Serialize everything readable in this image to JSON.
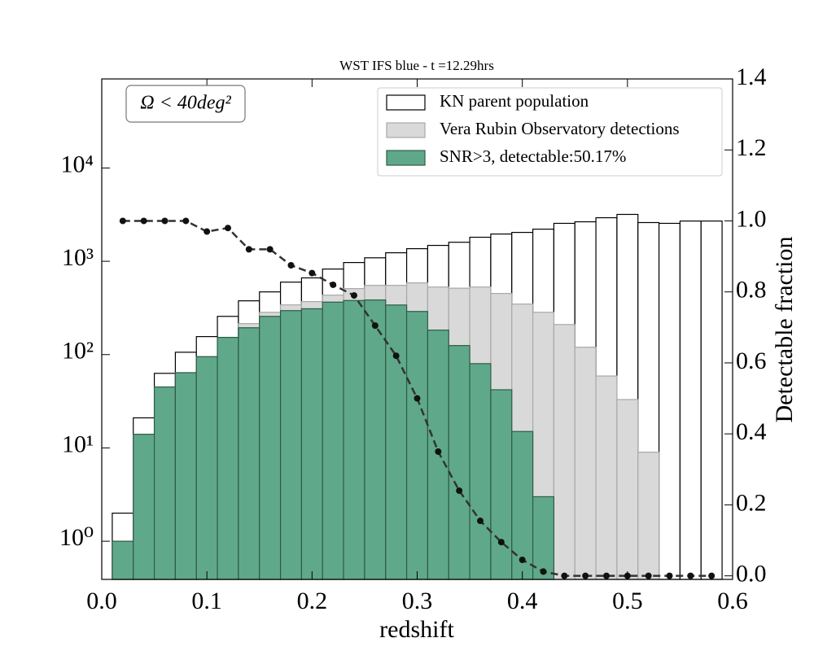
{
  "chart_data": {
    "type": "histogram",
    "title": "WST IFS blue - t =12.29hrs",
    "xlabel": "redshift",
    "y2label": "Detectable fraction",
    "annotation": "Ω < 40deg²",
    "log_y": true,
    "legend": "upper right",
    "bins": [
      0.01,
      0.03,
      0.05,
      0.07,
      0.09,
      0.11,
      0.13,
      0.15,
      0.17,
      0.19,
      0.21,
      0.23,
      0.25,
      0.27,
      0.29,
      0.31,
      0.33,
      0.35,
      0.37,
      0.39,
      0.41,
      0.43,
      0.45,
      0.47,
      0.49,
      0.51,
      0.53,
      0.55,
      0.57,
      0.59
    ],
    "series": [
      {
        "name": "KN parent population",
        "color": "#ffffff",
        "edge": "#000000",
        "values": [
          2,
          21,
          63,
          106,
          156,
          257,
          377,
          470,
          598,
          664,
          826,
          970,
          1090,
          1234,
          1365,
          1480,
          1600,
          1810,
          1960,
          2040,
          2210,
          2550,
          2650,
          2930,
          3180,
          2600,
          2550,
          2700,
          2700
        ]
      },
      {
        "name": "Vera Rubin Observatory detections",
        "color": "#d9d9d9",
        "edge": "#a8a8a8",
        "values": [
          1,
          14,
          45,
          64,
          95,
          153,
          215,
          284,
          341,
          370,
          434,
          510,
          552,
          552,
          587,
          530,
          515,
          530,
          452,
          348,
          284,
          210,
          120,
          59,
          33,
          9,
          null,
          null,
          null
        ]
      },
      {
        "name": "SNR>3, detectable:50.17%",
        "color": "#5fa98a",
        "edge": "#2f5a48",
        "values": [
          1,
          14,
          45,
          64,
          95,
          153,
          194,
          257,
          296,
          310,
          365,
          380,
          385,
          340,
          290,
          183,
          125,
          80,
          42,
          15,
          3,
          null,
          null,
          null,
          null,
          null,
          null,
          null,
          null
        ]
      },
      {
        "type": "line",
        "axis": "y2",
        "color": "#333333",
        "x": [
          0.02,
          0.04,
          0.06,
          0.08,
          0.1,
          0.12,
          0.14,
          0.16,
          0.18,
          0.2,
          0.22,
          0.24,
          0.26,
          0.28,
          0.3,
          0.32,
          0.34,
          0.36,
          0.38,
          0.4,
          0.42,
          0.44,
          0.46,
          0.48,
          0.5,
          0.52,
          0.54,
          0.56,
          0.58
        ],
        "values": [
          1.0,
          1.0,
          1.0,
          1.0,
          0.97,
          0.98,
          0.92,
          0.92,
          0.875,
          0.853,
          0.82,
          0.79,
          0.705,
          0.62,
          0.5,
          0.35,
          0.24,
          0.155,
          0.095,
          0.045,
          0.012,
          0,
          0,
          0,
          0,
          0,
          0,
          0,
          0
        ]
      }
    ],
    "xlim": [
      0,
      0.6
    ],
    "xticks": [
      {
        "value": 0,
        "label": "0.0"
      },
      0.1,
      0.2,
      0.3,
      0.4,
      0.5,
      0.6
    ],
    "ylim": [
      0.39,
      90000
    ],
    "yticks": [
      {
        "value": 1,
        "label": "10⁰"
      },
      {
        "value": 10,
        "label": "10¹"
      },
      {
        "value": 100,
        "label": "10²"
      },
      {
        "value": 1000,
        "label": "10³"
      },
      {
        "value": 10000,
        "label": "10⁴"
      }
    ],
    "y2lim": [
      -0.01,
      1.4
    ],
    "y2ticks": [
      {
        "value": 0,
        "label": "0.0"
      },
      0.2,
      0.4,
      0.6,
      0.8,
      {
        "value": 1,
        "label": "1.0"
      },
      1.2,
      1.4
    ]
  }
}
